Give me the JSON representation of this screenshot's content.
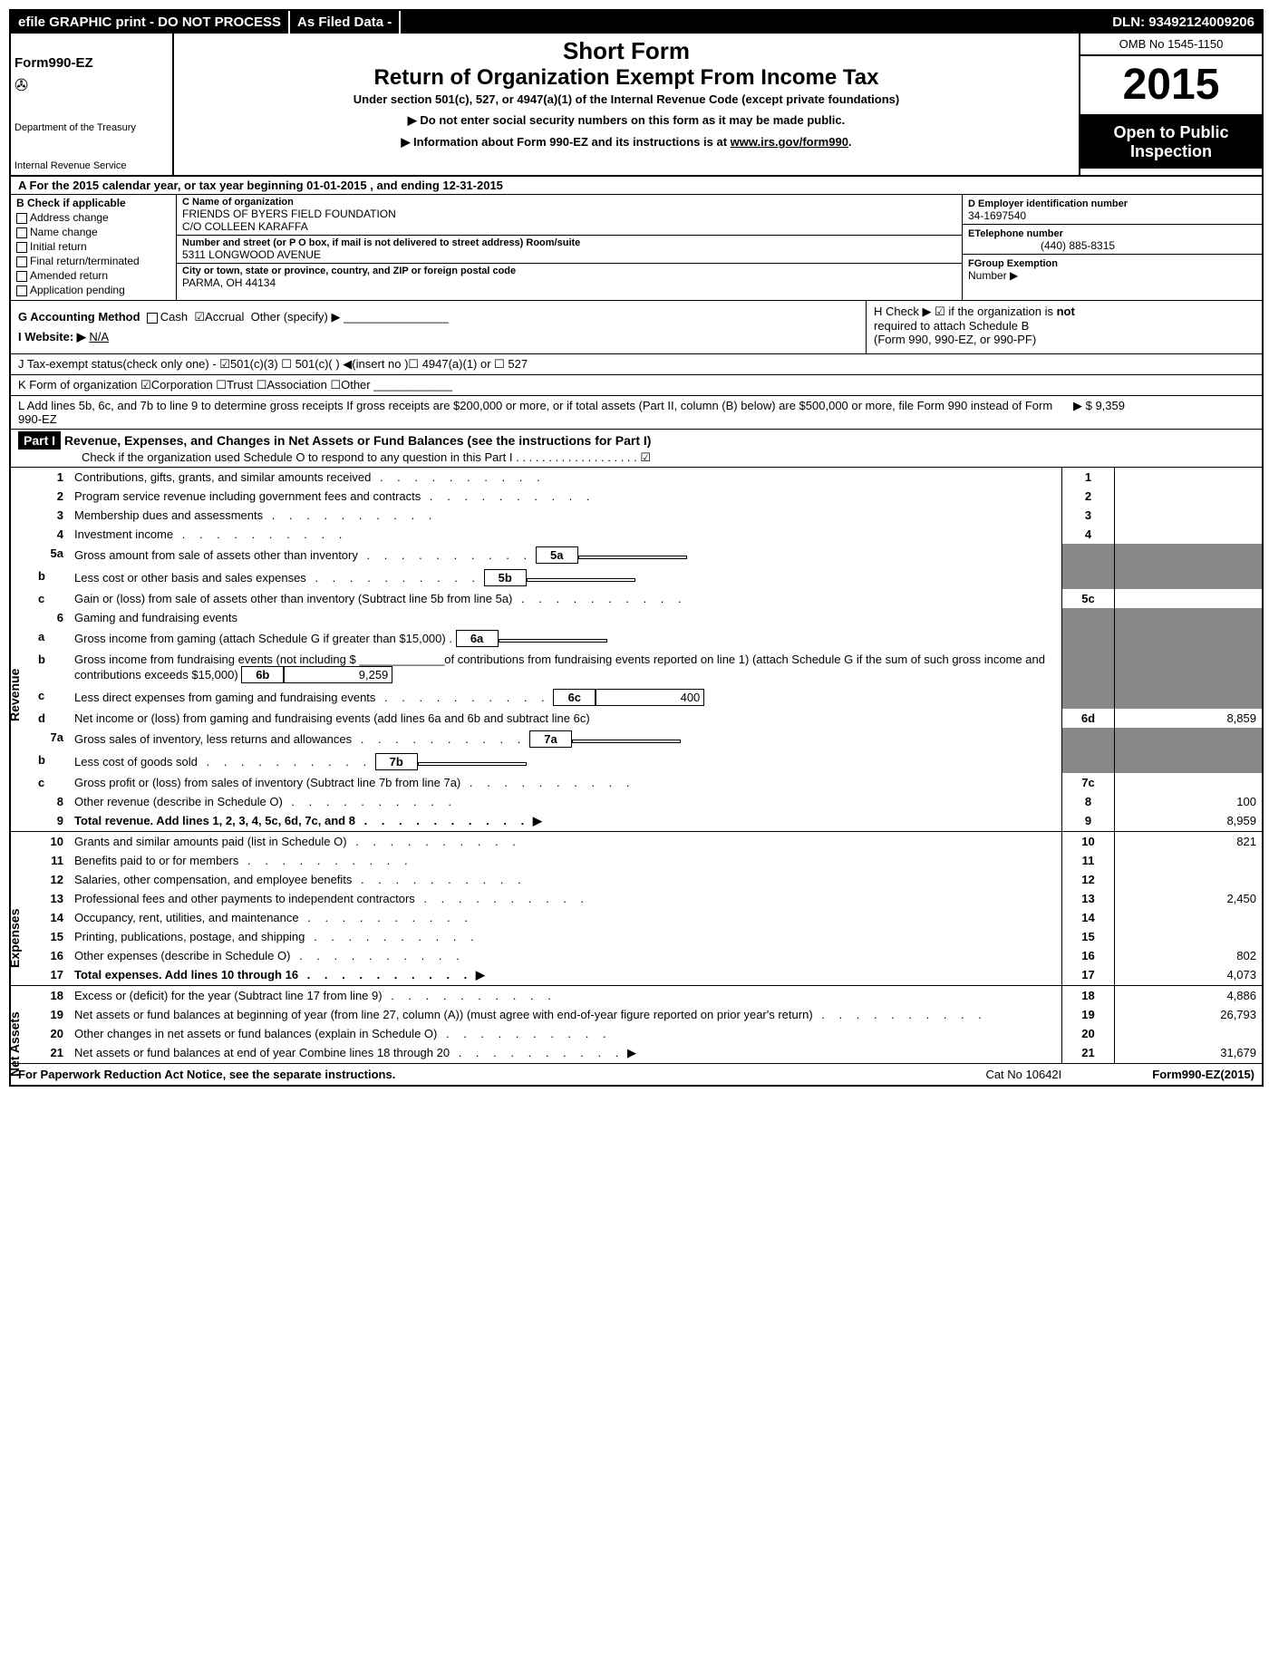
{
  "topbar": {
    "efile": "efile GRAPHIC print - DO NOT PROCESS",
    "asfiled": "As Filed Data -",
    "dln": "DLN: 93492124009206"
  },
  "hdr": {
    "formno_prefix": "Form",
    "formno": "990-EZ",
    "title1": "Short Form",
    "title2": "Return of Organization Exempt From Income Tax",
    "sub": "Under section 501(c), 527, or 4947(a)(1) of the Internal Revenue Code (except private foundations)",
    "warn1": "▶ Do not enter social security numbers on this form as it may be made public.",
    "warn2": "▶ Information about Form 990-EZ and its instructions is at ",
    "warn2link": "www.irs.gov/form990",
    "dept1": "Department of the Treasury",
    "dept2": "Internal Revenue Service",
    "omb": "OMB No 1545-1150",
    "year": "2015",
    "open1": "Open to Public",
    "open2": "Inspection"
  },
  "A": {
    "txt": "A  For the 2015 calendar year, or tax year beginning 01-01-2015                                   , and ending 12-31-2015"
  },
  "B": {
    "hdr": "B  Check if applicable",
    "items": [
      "Address change",
      "Name change",
      "Initial return",
      "Final return/terminated",
      "Amended return",
      "Application pending"
    ]
  },
  "C": {
    "nameLbl": "C Name of organization",
    "name": "FRIENDS OF BYERS FIELD FOUNDATION",
    "co": "C/O COLLEEN KARAFFA",
    "addrLbl": "Number and street (or P   O   box, if mail is not delivered to street address) Room/suite",
    "addr": "5311 LONGWOOD AVENUE",
    "cityLbl": "City or town, state or province, country, and ZIP or foreign postal code",
    "city": "PARMA, OH  44134"
  },
  "D": {
    "lbl": "D Employer identification number",
    "val": "34-1697540"
  },
  "E": {
    "lbl": "ETelephone number",
    "val": "(440) 885-8315"
  },
  "F": {
    "lbl": "FGroup Exemption",
    "lbl2": "Number    ▶"
  },
  "G": {
    "txt": "G Accounting Method",
    "cash": "Cash",
    "accr": "Accrual",
    "oth": "Other (specify) ▶"
  },
  "H": {
    "l1": "H   Check ▶  ☑  if the organization is",
    "l2": "not",
    "l3": "required to attach Schedule B",
    "l4": "(Form 990, 990-EZ, or 990-PF)"
  },
  "I": {
    "txt": "I Website: ▶",
    "val": "N/A"
  },
  "J": {
    "txt": "J Tax-exempt status(check only one) - ☑501(c)(3) ☐  501(c)(  )  ◀(insert no )☐ 4947(a)(1) or ☐ 527"
  },
  "K": {
    "txt": "K Form of organization   ☑Corporation  ☐Trust  ☐Association  ☐Other"
  },
  "L": {
    "txt": "L Add lines 5b, 6c, and 7b to line 9 to determine gross receipts  If gross receipts are $200,000 or more, or if total assets (Part II, column (B) below) are $500,000 or more, file Form 990 instead of Form 990-EZ",
    "val": "▶ $ 9,359"
  },
  "partI": {
    "hdr": "Part I",
    "title": "Revenue, Expenses, and Changes in Net Assets or Fund Balances (see the instructions for Part I)",
    "sub": "Check if the organization used Schedule O to respond to any question in this Part I  .  .  .  .  .  .  .  .  .  .  .  .  .  .  .  .  .  .  .  ☑"
  },
  "lines": {
    "1": {
      "d": "Contributions, gifts, grants, and similar amounts received",
      "v": ""
    },
    "2": {
      "d": "Program service revenue including government fees and contracts",
      "v": ""
    },
    "3": {
      "d": "Membership dues and assessments",
      "v": ""
    },
    "4": {
      "d": "Investment income",
      "v": ""
    },
    "5a": {
      "d": "Gross amount from sale of assets other than inventory",
      "sub": "5a",
      "sv": ""
    },
    "5b": {
      "d": "Less  cost or other basis and sales expenses",
      "sub": "5b",
      "sv": ""
    },
    "5c": {
      "d": "Gain or (loss) from sale of assets other than inventory (Subtract line 5b from line 5a)",
      "v": ""
    },
    "6": {
      "d": "Gaming and fundraising events"
    },
    "6a": {
      "d": "Gross income from gaming (attach Schedule G if greater than $15,000)",
      "sub": "6a",
      "sv": ""
    },
    "6b": {
      "d": "Gross income from fundraising events (not including $ _____________of contributions from fundraising events reported on line 1) (attach Schedule G if the sum of such gross income and contributions exceeds $15,000)",
      "sub": "6b",
      "sv": "9,259"
    },
    "6c": {
      "d": "Less  direct expenses from gaming and fundraising events",
      "sub": "6c",
      "sv": "400"
    },
    "6d": {
      "d": "Net income or (loss) from gaming and fundraising events (add lines 6a and 6b and subtract line 6c)",
      "v": "8,859"
    },
    "7a": {
      "d": "Gross sales of inventory, less returns and allowances",
      "sub": "7a",
      "sv": ""
    },
    "7b": {
      "d": "Less  cost of goods sold",
      "sub": "7b",
      "sv": ""
    },
    "7c": {
      "d": "Gross profit or (loss) from sales of inventory (Subtract line 7b from line 7a)",
      "v": ""
    },
    "8": {
      "d": "Other revenue (describe in Schedule O)",
      "v": "100"
    },
    "9": {
      "d": "Total revenue. Add lines 1, 2, 3, 4, 5c, 6d, 7c, and 8",
      "v": "8,959",
      "arrow": true,
      "bold": true
    },
    "10": {
      "d": "Grants and similar amounts paid (list in Schedule O)",
      "v": "821"
    },
    "11": {
      "d": "Benefits paid to or for members",
      "v": ""
    },
    "12": {
      "d": "Salaries, other compensation, and employee benefits",
      "v": ""
    },
    "13": {
      "d": "Professional fees and other payments to independent contractors",
      "v": "2,450"
    },
    "14": {
      "d": "Occupancy, rent, utilities, and maintenance",
      "v": ""
    },
    "15": {
      "d": "Printing, publications, postage, and shipping",
      "v": ""
    },
    "16": {
      "d": "Other expenses (describe in Schedule O)",
      "v": "802"
    },
    "17": {
      "d": "Total expenses. Add lines 10 through 16",
      "v": "4,073",
      "arrow": true,
      "bold": true
    },
    "18": {
      "d": "Excess or (deficit) for the year (Subtract line 17 from line 9)",
      "v": "4,886"
    },
    "19": {
      "d": "Net assets or fund balances at beginning of year (from line 27, column (A)) (must agree with end-of-year figure reported on prior year's return)",
      "v": "26,793"
    },
    "20": {
      "d": "Other changes in net assets or fund balances (explain in Schedule O)",
      "v": ""
    },
    "21": {
      "d": "Net assets or fund balances at end of year  Combine lines 18 through 20",
      "v": "31,679",
      "arrow": true
    }
  },
  "sidebars": {
    "rev": "Revenue",
    "exp": "Expenses",
    "na": "Net Assets"
  },
  "footer": {
    "f1": "For Paperwork Reduction Act Notice, see the separate instructions.",
    "f2": "Cat No 10642I",
    "f3": "Form990-EZ(2015)"
  }
}
